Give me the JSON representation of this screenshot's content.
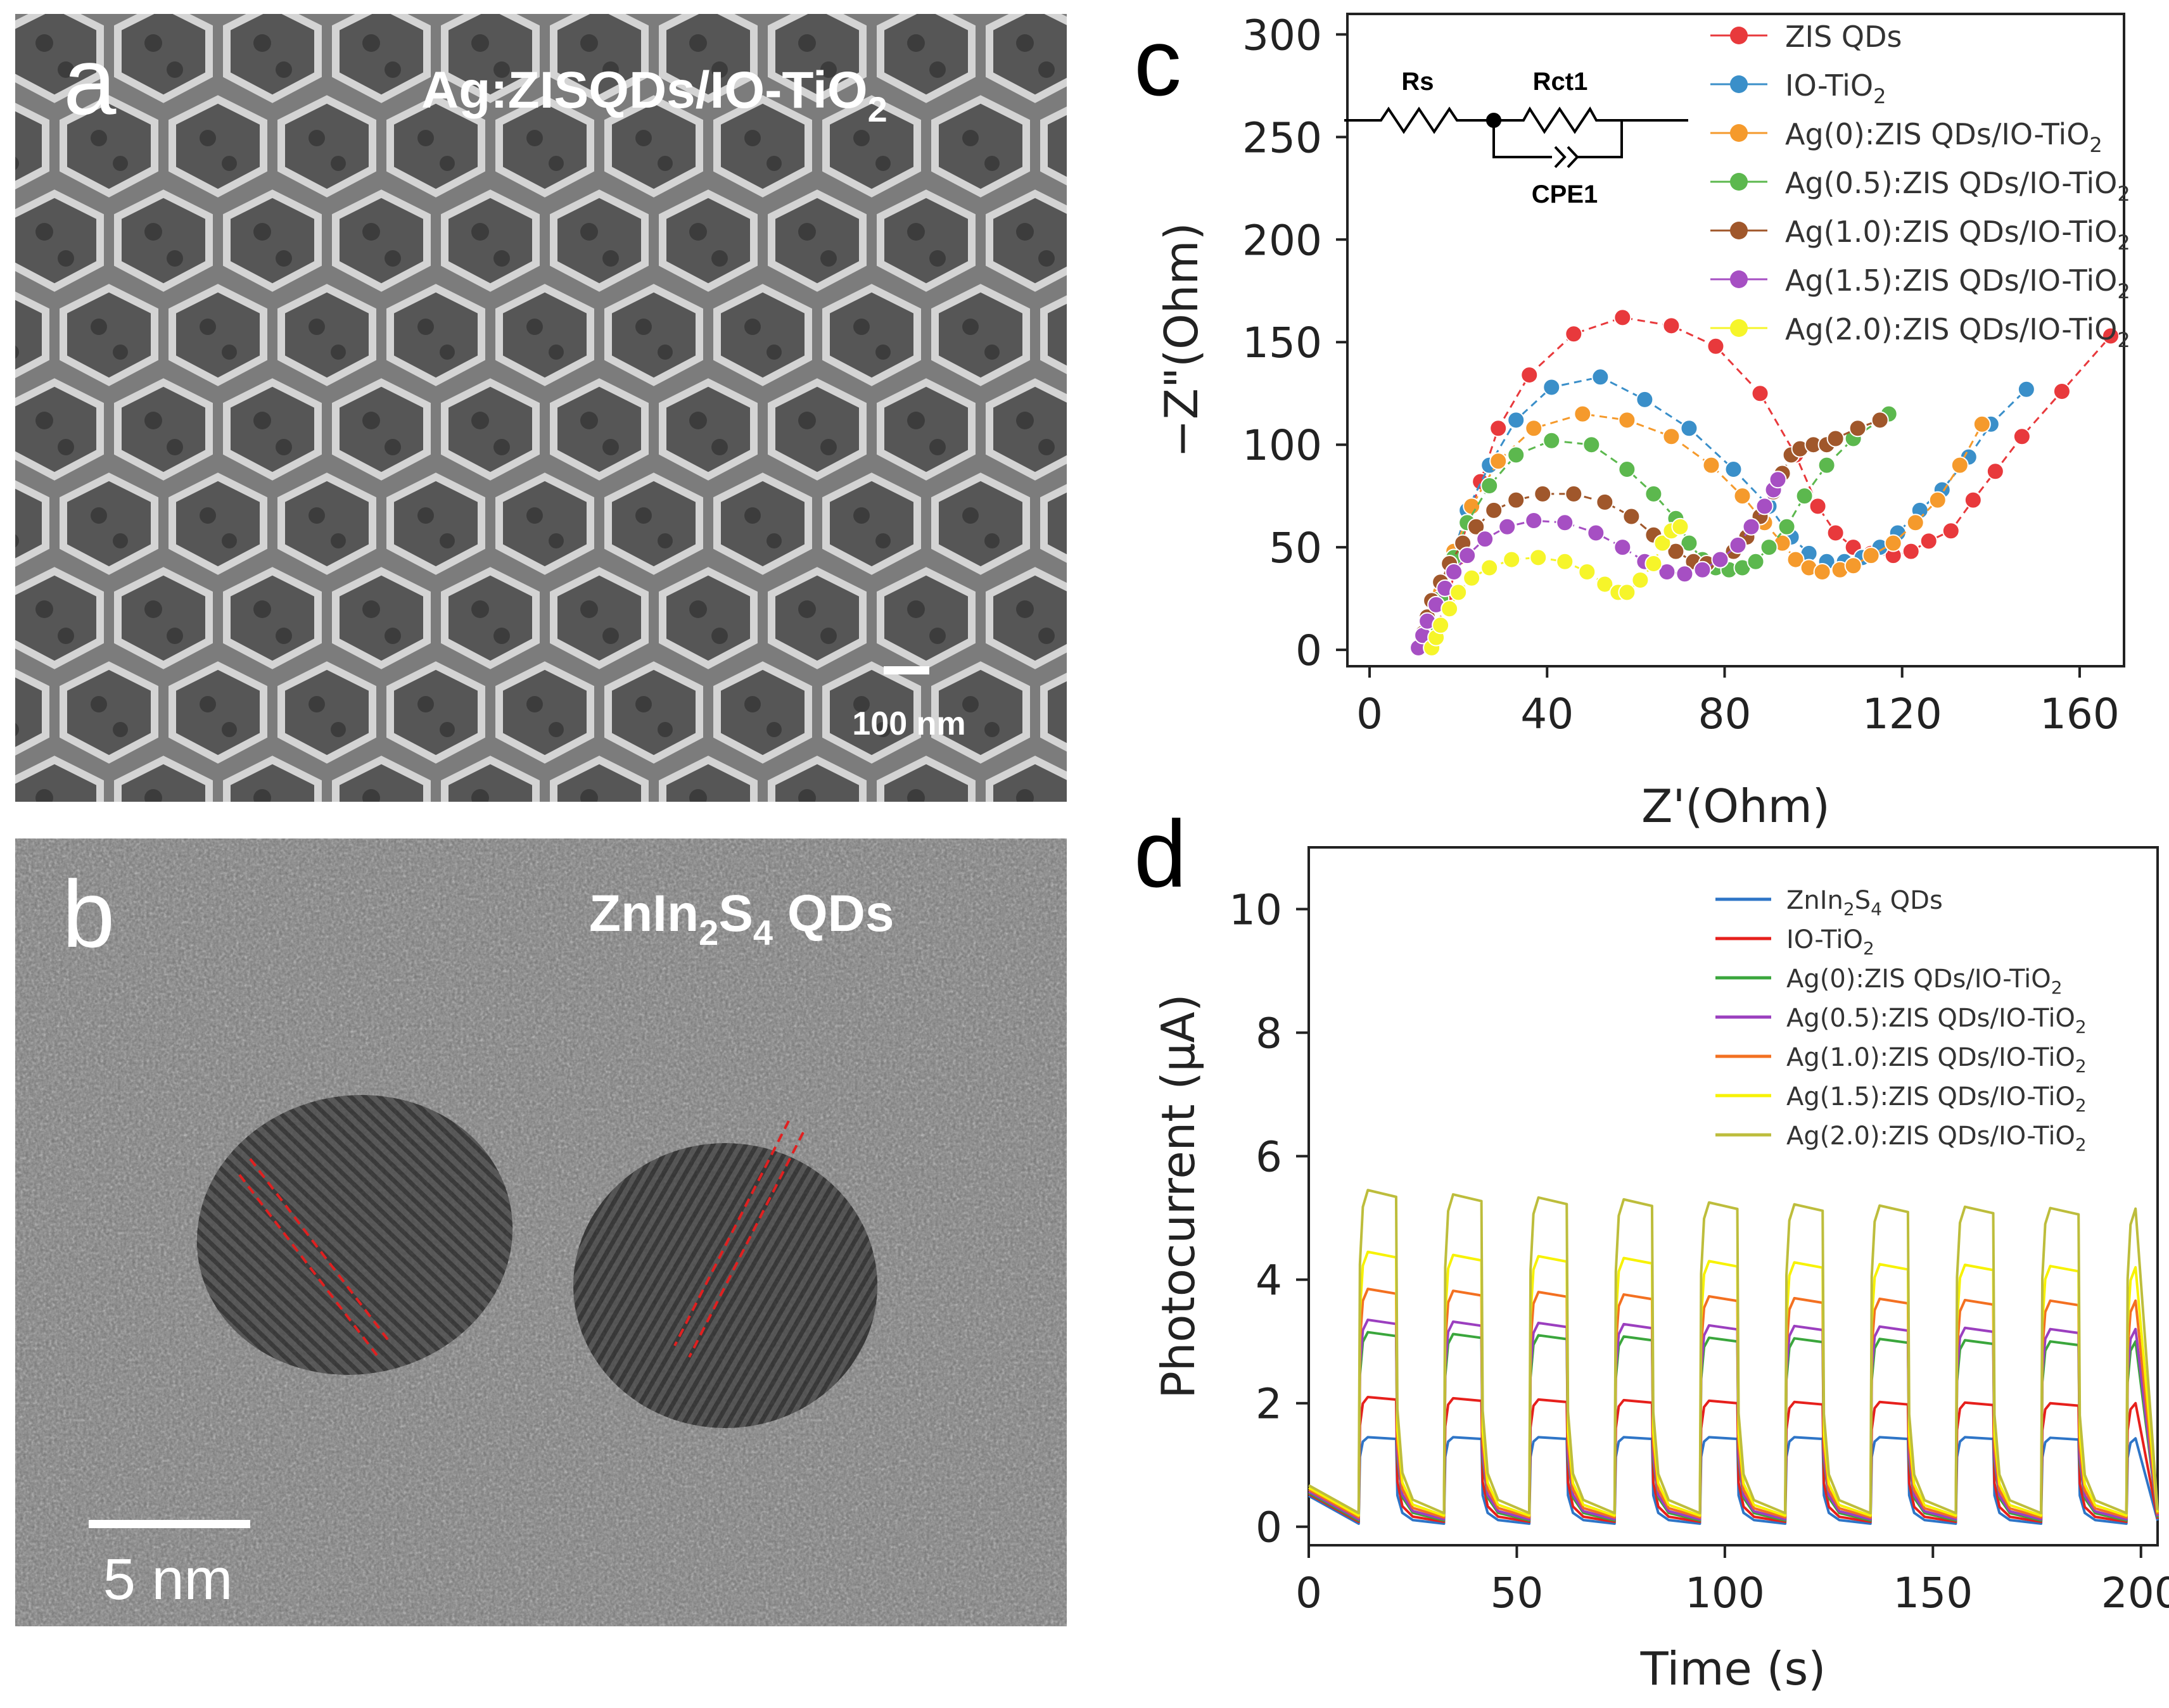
{
  "panels": {
    "a": {
      "letter": "a",
      "label_main": "Ag:ZISQDs/IO-TiO",
      "label_sub": "2",
      "scale_bar": "100 nm"
    },
    "b": {
      "letter": "b",
      "label_parts": [
        "ZnIn",
        "2",
        "S",
        "4",
        " QDs"
      ],
      "scale_bar": "5 nm"
    },
    "c": {
      "letter": "c"
    },
    "d": {
      "letter": "d"
    }
  },
  "colors": {
    "red": "#e8393c",
    "blue": "#3a8fc9",
    "orange": "#f59a2c",
    "green": "#5cb84e",
    "brown": "#a0572b",
    "purple": "#a64fc3",
    "yellow": "#f6f52a",
    "d_blue": "#2e75c7",
    "d_red": "#e6201c",
    "d_green": "#3aa63c",
    "d_purple": "#9b3fbf",
    "d_orange": "#f37021",
    "d_yellow": "#f7f200",
    "d_olive": "#bdbd3c",
    "circuit": "#000000"
  },
  "circuit": {
    "rs": "Rs",
    "rct1": "Rct1",
    "cpe1": "CPE1"
  },
  "chart_data": [
    {
      "id": "c",
      "type": "scatter",
      "xlabel": "Z'(Ohm)",
      "ylabel": "−Z\"(Ohm)",
      "xlim": [
        -5,
        170
      ],
      "ylim": [
        -8,
        310
      ],
      "xticks": [
        "0",
        "40",
        "80",
        "120",
        "160"
      ],
      "xtick_values": [
        0,
        40,
        80,
        120,
        160
      ],
      "yticks": [
        "0",
        "50",
        "100",
        "150",
        "200",
        "250",
        "300"
      ],
      "ytick_values": [
        0,
        50,
        100,
        150,
        200,
        250,
        300
      ],
      "legend_position": "top-right",
      "series": [
        {
          "name": "ZIS QDs",
          "sub": "",
          "color_key": "red",
          "points": [
            [
              13,
              2
            ],
            [
              15,
              10
            ],
            [
              18,
              28
            ],
            [
              20,
              45
            ],
            [
              22,
              62
            ],
            [
              25,
              82
            ],
            [
              29,
              108
            ],
            [
              36,
              134
            ],
            [
              46,
              154
            ],
            [
              57,
              162
            ],
            [
              68,
              158
            ],
            [
              78,
              148
            ],
            [
              88,
              125
            ],
            [
              96,
              95
            ],
            [
              101,
              70
            ],
            [
              105,
              57
            ],
            [
              109,
              50
            ],
            [
              113,
              47
            ],
            [
              118,
              46
            ],
            [
              122,
              48
            ],
            [
              126,
              53
            ],
            [
              131,
              58
            ],
            [
              136,
              73
            ],
            [
              141,
              87
            ],
            [
              147,
              104
            ],
            [
              156,
              126
            ],
            [
              167,
              153
            ]
          ]
        },
        {
          "name": "IO-TiO",
          "sub": "2",
          "color_key": "blue",
          "points": [
            [
              12,
              2
            ],
            [
              14,
              12
            ],
            [
              16,
              28
            ],
            [
              19,
              48
            ],
            [
              22,
              68
            ],
            [
              27,
              90
            ],
            [
              33,
              112
            ],
            [
              41,
              128
            ],
            [
              52,
              133
            ],
            [
              62,
              122
            ],
            [
              72,
              108
            ],
            [
              82,
              88
            ],
            [
              90,
              70
            ],
            [
              95,
              55
            ],
            [
              99,
              47
            ],
            [
              103,
              43
            ],
            [
              107,
              43
            ],
            [
              111,
              45
            ],
            [
              115,
              50
            ],
            [
              119,
              57
            ],
            [
              124,
              68
            ],
            [
              129,
              78
            ],
            [
              135,
              94
            ],
            [
              140,
              110
            ],
            [
              148,
              127
            ]
          ]
        },
        {
          "name": "Ag(0):ZIS QDs/IO-TiO",
          "sub": "2",
          "color_key": "orange",
          "points": [
            [
              12,
              2
            ],
            [
              14,
              12
            ],
            [
              16,
              28
            ],
            [
              19,
              48
            ],
            [
              23,
              70
            ],
            [
              29,
              92
            ],
            [
              37,
              108
            ],
            [
              48,
              115
            ],
            [
              58,
              112
            ],
            [
              68,
              104
            ],
            [
              77,
              90
            ],
            [
              84,
              75
            ],
            [
              89,
              62
            ],
            [
              93,
              52
            ],
            [
              96,
              44
            ],
            [
              99,
              40
            ],
            [
              102,
              38
            ],
            [
              106,
              39
            ],
            [
              109,
              41
            ],
            [
              113,
              46
            ],
            [
              118,
              52
            ],
            [
              123,
              62
            ],
            [
              128,
              73
            ],
            [
              133,
              90
            ],
            [
              138,
              110
            ]
          ]
        },
        {
          "name": "Ag(0.5):ZIS QDs/IO-TiO",
          "sub": "2",
          "color_key": "green",
          "points": [
            [
              12,
              2
            ],
            [
              14,
              12
            ],
            [
              16,
              25
            ],
            [
              19,
              45
            ],
            [
              22,
              62
            ],
            [
              27,
              80
            ],
            [
              33,
              95
            ],
            [
              41,
              102
            ],
            [
              50,
              100
            ],
            [
              58,
              88
            ],
            [
              64,
              76
            ],
            [
              69,
              64
            ],
            [
              72,
              52
            ],
            [
              75,
              44
            ],
            [
              78,
              40
            ],
            [
              81,
              39
            ],
            [
              84,
              40
            ],
            [
              87,
              43
            ],
            [
              90,
              50
            ],
            [
              94,
              60
            ],
            [
              98,
              75
            ],
            [
              103,
              90
            ],
            [
              109,
              103
            ],
            [
              117,
              115
            ]
          ]
        },
        {
          "name": "Ag(1.0):ZIS QDs/IO-TiO",
          "sub": "2",
          "color_key": "brown",
          "points": [
            [
              11,
              1
            ],
            [
              12,
              8
            ],
            [
              13,
              16
            ],
            [
              14,
              24
            ],
            [
              16,
              33
            ],
            [
              18,
              42
            ],
            [
              21,
              52
            ],
            [
              24,
              60
            ],
            [
              28,
              68
            ],
            [
              33,
              73
            ],
            [
              39,
              76
            ],
            [
              46,
              76
            ],
            [
              53,
              72
            ],
            [
              59,
              65
            ],
            [
              64,
              56
            ],
            [
              69,
              48
            ],
            [
              73,
              43
            ],
            [
              76,
              42
            ],
            [
              79,
              44
            ],
            [
              82,
              48
            ],
            [
              85,
              55
            ],
            [
              88,
              65
            ],
            [
              91,
              77
            ],
            [
              93,
              86
            ],
            [
              95,
              95
            ],
            [
              97,
              98
            ],
            [
              100,
              100
            ],
            [
              103,
              100
            ],
            [
              105,
              103
            ],
            [
              110,
              108
            ],
            [
              115,
              112
            ]
          ]
        },
        {
          "name": "Ag(1.5):ZIS QDs/IO-TiO",
          "sub": "2",
          "color_key": "purple",
          "points": [
            [
              11,
              1
            ],
            [
              12,
              7
            ],
            [
              13,
              14
            ],
            [
              15,
              22
            ],
            [
              17,
              30
            ],
            [
              19,
              38
            ],
            [
              22,
              46
            ],
            [
              26,
              54
            ],
            [
              31,
              60
            ],
            [
              37,
              63
            ],
            [
              44,
              62
            ],
            [
              51,
              57
            ],
            [
              57,
              50
            ],
            [
              62,
              43
            ],
            [
              67,
              38
            ],
            [
              71,
              37
            ],
            [
              75,
              39
            ],
            [
              79,
              44
            ],
            [
              83,
              51
            ],
            [
              86,
              60
            ],
            [
              89,
              70
            ],
            [
              91,
              78
            ],
            [
              92,
              83
            ]
          ]
        },
        {
          "name": "Ag(2.0):ZIS QDs/IO-TiO",
          "sub": "2",
          "color_key": "yellow",
          "points": [
            [
              14,
              1
            ],
            [
              15,
              6
            ],
            [
              16,
              12
            ],
            [
              18,
              20
            ],
            [
              20,
              28
            ],
            [
              23,
              35
            ],
            [
              27,
              40
            ],
            [
              32,
              44
            ],
            [
              38,
              45
            ],
            [
              44,
              43
            ],
            [
              49,
              38
            ],
            [
              53,
              32
            ],
            [
              56,
              28
            ],
            [
              58,
              28
            ],
            [
              61,
              34
            ],
            [
              64,
              42
            ],
            [
              66,
              52
            ],
            [
              68,
              58
            ],
            [
              70,
              60
            ]
          ]
        }
      ]
    },
    {
      "id": "d",
      "type": "line",
      "xlabel": "Time (s)",
      "ylabel": "Photocurrent (μA)",
      "xlim": [
        0,
        204
      ],
      "ylim": [
        -0.3,
        11
      ],
      "xticks": [
        "0",
        "50",
        "100",
        "150",
        "200"
      ],
      "xtick_values": [
        0,
        50,
        100,
        150,
        200
      ],
      "yticks": [
        "0",
        "2",
        "4",
        "6",
        "8",
        "10"
      ],
      "ytick_values": [
        0,
        2,
        4,
        6,
        8,
        10
      ],
      "legend_position": "top-right",
      "period_s": 20.5,
      "on_duration_s": 9,
      "first_on_s": 12,
      "cycles": 10,
      "series": [
        {
          "name": "ZnIn",
          "parts": [
            "ZnIn",
            "2",
            "S",
            "4",
            " QDs"
          ],
          "color_key": "d_blue",
          "on_values": [
            1.45,
            1.45,
            1.45,
            1.45,
            1.45,
            1.45,
            1.45,
            1.45,
            1.44,
            1.43
          ],
          "off_value": 0.05
        },
        {
          "name": "IO-TiO",
          "parts": [
            "IO-TiO",
            "2",
            "",
            "",
            ""
          ],
          "color_key": "d_red",
          "on_values": [
            2.1,
            2.08,
            2.06,
            2.05,
            2.04,
            2.02,
            2.02,
            2.01,
            2.0,
            2.0
          ],
          "off_value": 0.08
        },
        {
          "name": "Ag(0):ZIS QDs/IO-TiO",
          "parts": [
            "Ag(0):ZIS QDs/IO-TiO",
            "2",
            "",
            "",
            ""
          ],
          "color_key": "d_green",
          "on_values": [
            3.15,
            3.12,
            3.1,
            3.08,
            3.06,
            3.05,
            3.04,
            3.02,
            3.0,
            3.0
          ],
          "off_value": 0.1
        },
        {
          "name": "Ag(0.5):ZIS QDs/IO-TiO",
          "parts": [
            "Ag(0.5):ZIS QDs/IO-TiO",
            "2",
            "",
            "",
            ""
          ],
          "color_key": "d_purple",
          "on_values": [
            3.35,
            3.32,
            3.3,
            3.28,
            3.26,
            3.25,
            3.24,
            3.22,
            3.2,
            3.2
          ],
          "off_value": 0.12
        },
        {
          "name": "Ag(1.0):ZIS QDs/IO-TiO",
          "parts": [
            "Ag(1.0):ZIS QDs/IO-TiO",
            "2",
            "",
            "",
            ""
          ],
          "color_key": "d_orange",
          "on_values": [
            3.85,
            3.82,
            3.8,
            3.76,
            3.73,
            3.7,
            3.69,
            3.67,
            3.66,
            3.66
          ],
          "off_value": 0.15
        },
        {
          "name": "Ag(1.5):ZIS QDs/IO-TiO",
          "parts": [
            "Ag(1.5):ZIS QDs/IO-TiO",
            "2",
            "",
            "",
            ""
          ],
          "color_key": "d_yellow",
          "on_values": [
            4.45,
            4.4,
            4.38,
            4.35,
            4.3,
            4.28,
            4.25,
            4.24,
            4.22,
            4.2
          ],
          "off_value": 0.18
        },
        {
          "name": "Ag(2.0):ZIS QDs/IO-TiO",
          "parts": [
            "Ag(2.0):ZIS QDs/IO-TiO",
            "2",
            "",
            "",
            ""
          ],
          "color_key": "d_olive",
          "on_values": [
            5.45,
            5.38,
            5.33,
            5.3,
            5.25,
            5.22,
            5.2,
            5.18,
            5.16,
            5.15
          ],
          "off_value": 0.22
        }
      ]
    }
  ]
}
